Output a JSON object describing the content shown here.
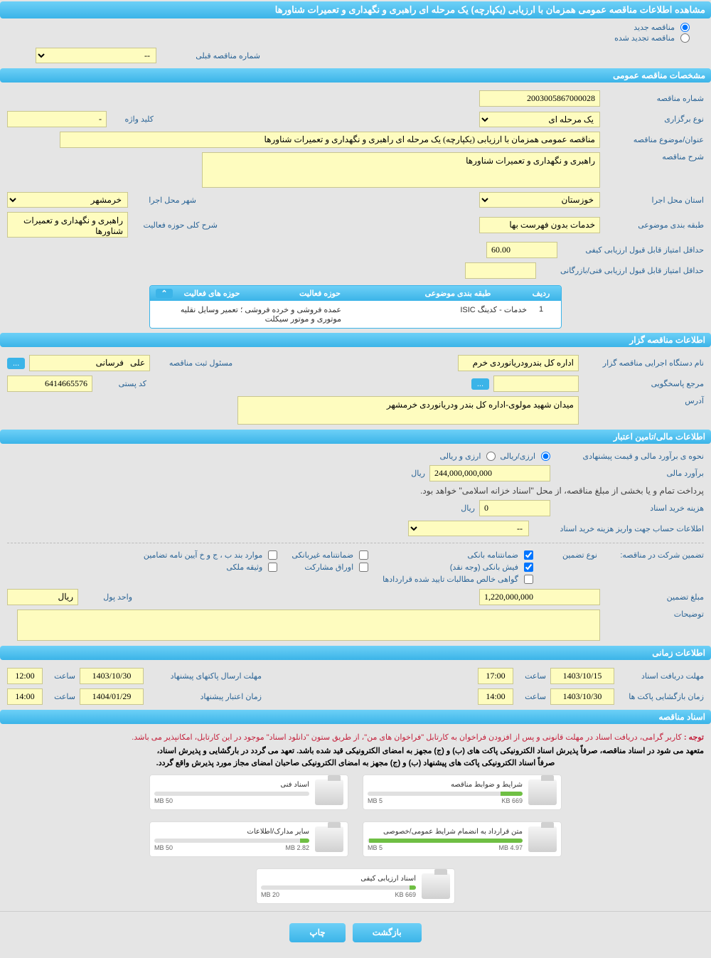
{
  "header": "مشاهده اطلاعات مناقصه عمومی همزمان با ارزیابی (یکپارچه) یک مرحله ای راهبری و نگهداری و تعمیرات شناورها",
  "radios": {
    "new": "مناقصه جدید",
    "renewed": "مناقصه تجدید شده"
  },
  "prev_num_label": "شماره مناقصه قبلی",
  "prev_num_value": "--",
  "sec_general": "مشخصات مناقصه عمومی",
  "tender_num_label": "شماره مناقصه",
  "tender_num": "2003005867000028",
  "hold_type_label": "نوع برگزاری",
  "hold_type": "یک مرحله ای",
  "keyword_label": "کلید واژه",
  "keyword_sep": "-",
  "subject_label": "عنوان/موضوع مناقصه",
  "subject": "مناقصه عمومی همزمان با ارزیابی (یکپارچه) یک مرحله ای راهبری و نگهداری و تعمیرات شناورها",
  "desc_label": "شرح مناقصه",
  "desc": "راهبری و نگهداری و تعمیرات شناورها",
  "province_label": "استان محل اجرا",
  "province": "خوزستان",
  "city_label": "شهر محل اجرا",
  "city": "خرمشهر",
  "class_label": "طبقه بندی موضوعی",
  "class_value": "خدمات بدون فهرست بها",
  "scope_label": "شرح کلی حوزه فعالیت",
  "scope": "راهبری و نگهداری و تعمیرات شناورها",
  "min_qual_label": "حداقل امتیاز قابل قبول ارزیابی کیفی",
  "min_qual": "60.00",
  "min_tech_label": "حداقل امتیاز قابل قبول ارزیابی فنی/بازرگانی",
  "activity_table": {
    "title": "حوزه های فعالیت",
    "cols": {
      "row": "ردیف",
      "cat": "طبقه بندی موضوعی",
      "field": "حوزه فعالیت"
    },
    "row": {
      "n": "1",
      "cat": "خدمات - کدینگ ISIC",
      "field": "عمده فروشی و خرده فروشی ؛ تعمیر وسایل نقلیه موتوری و موتور سیکلت"
    }
  },
  "sec_owner": "اطلاعات مناقصه گزار",
  "org_label": "نام دستگاه اجرایی مناقصه گزار",
  "org": "اداره کل بندرودریانوردی خرم",
  "reg_label": "مسئول ثبت مناقصه",
  "reg_person": "علی   فرسانی",
  "more_btn": "...",
  "contact_label": "مرجع پاسخگویی",
  "postal_label": "کد پستی",
  "postal": "6414665576",
  "address_label": "آدرس",
  "address": "میدان شهید مولوی-اداره کل بندر ودریانوردی خرمشهر",
  "sec_fin": "اطلاعات مالی/تامین اعتبار",
  "est_label": "نحوه ی برآورد مالی و قیمت پیشنهادی",
  "radio_ar": "ارزی/ریالی",
  "radio_r": "ارزی و ریالی",
  "est_amount_label": "برآورد مالی",
  "est_amount": "244,000,000,000",
  "rial": "ریال",
  "treasury_note": "پرداخت تمام و یا بخشی از مبلغ مناقصه، از محل \"اسناد خزانه اسلامی\" خواهد بود.",
  "doc_cost_label": "هزینه خرید اسناد",
  "doc_cost": "0",
  "account_label": "اطلاعات حساب جهت واریز هزینه خرید اسناد",
  "account_value": "--",
  "guar_label": "تضمین شرکت در مناقصه:",
  "guar_type_label": "نوع تضمین",
  "chk_bank": "ضمانتنامه بانکی",
  "chk_nonbank": "ضمانتنامه غیربانکی",
  "chk_cases": "موارد بند ب ، ج و خ آیین نامه تضامین",
  "chk_cash": "فیش بانکی (وجه نقد)",
  "chk_bonds": "اوراق مشارکت",
  "chk_prop": "وثیقه ملکی",
  "chk_cert": "گواهی خالص مطالبات تایید شده قراردادها",
  "guar_amount_label": "مبلغ تضمین",
  "guar_amount": "1,220,000,000",
  "currency_label": "واحد پول",
  "currency": "ریال",
  "notes_label": "توضیحات",
  "sec_time": "اطلاعات زمانی",
  "recv_label": "مهلت دریافت اسناد",
  "recv_date": "1403/10/15",
  "recv_time": "17:00",
  "open_label": "زمان بازگشایی پاکت ها",
  "open_date": "1403/10/30",
  "open_time": "14:00",
  "send_label": "مهلت ارسال پاکتهای پیشنهاد",
  "send_date": "1403/10/30",
  "send_time": "12:00",
  "valid_label": "زمان اعتبار پیشنهاد",
  "valid_date": "1404/01/29",
  "valid_time": "14:00",
  "time_label": "ساعت",
  "sec_docs": "اسناد مناقصه",
  "note_red_prefix": "توجه : ",
  "note_red": "کاربر گرامی، دریافت اسناد در مهلت قانونی و پس از افزودن فراخوان به کارتابل \"فراخوان های من\"، از طریق ستون \"دانلود اسناد\" موجود در این کارتابل، امکانپذیر می باشد.",
  "note_b1": "متعهد می شود در اسناد مناقصه، صرفاً پذیرش اسناد الکترونیکی پاکت های (ب) و (ج) مجهز به امضای الکترونیکی قید شده باشد. تعهد می گردد در بارگشایی و پذیرش اسناد،",
  "note_b2": "صرفاً اسناد الکترونیکی پاکت های پیشنهاد (ب) و (ج) مجهز به امضای الکترونیکی صاحبان امضای مجاز مورد پذیرش واقع گردد.",
  "docs": [
    {
      "title": "شرایط و ضوابط مناقصه",
      "used": "669 KB",
      "total": "5 MB",
      "pct": 14
    },
    {
      "title": "اسناد فنی",
      "used": "",
      "total": "50 MB",
      "pct": 0
    },
    {
      "title": "متن قرارداد به انضمام شرایط عمومی/خصوصی",
      "used": "4.97 MB",
      "total": "5 MB",
      "pct": 99
    },
    {
      "title": "سایر مدارک/اطلاعات",
      "used": "2.82 MB",
      "total": "50 MB",
      "pct": 6
    },
    {
      "title": "اسناد ارزیابی کیفی",
      "used": "669 KB",
      "total": "20 MB",
      "pct": 4
    }
  ],
  "btn_back": "بازگشت",
  "btn_print": "چاپ"
}
